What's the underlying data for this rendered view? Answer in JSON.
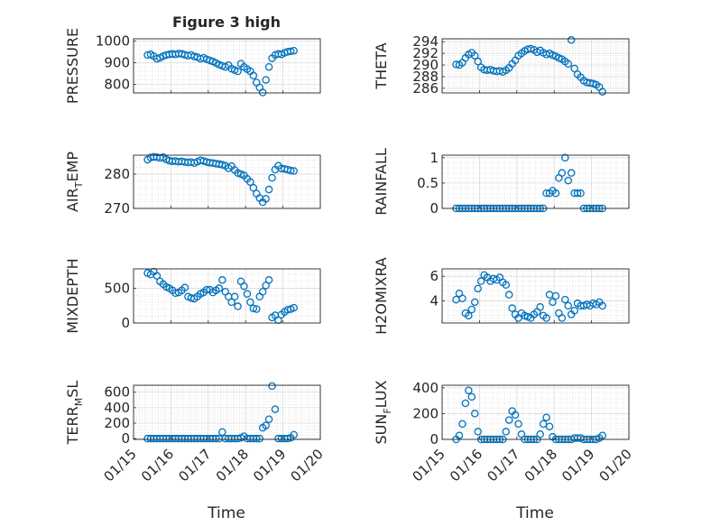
{
  "figure": {
    "title": "Figure 3 high",
    "xlabel": "Time",
    "xticks": [
      "01/15",
      "01/16",
      "01/17",
      "01/18",
      "01/19",
      "01/20"
    ]
  },
  "chart_data": [
    {
      "type": "scatter",
      "ylabel": "PRESSURE",
      "ylim": [
        760,
        1010
      ],
      "yticks": [
        "800",
        "900",
        "1000"
      ],
      "xlim": [
        "01/15",
        "01/20"
      ],
      "grid": true,
      "x": [
        "01/15 09:00",
        "01/15 11:00",
        "01/15 13:00",
        "01/15 15:00",
        "01/15 17:00",
        "01/15 19:00",
        "01/15 21:00",
        "01/15 23:00",
        "01/16 01:00",
        "01/16 03:00",
        "01/16 05:00",
        "01/16 07:00",
        "01/16 09:00",
        "01/16 11:00",
        "01/16 13:00",
        "01/16 15:00",
        "01/16 17:00",
        "01/16 19:00",
        "01/16 21:00",
        "01/16 23:00",
        "01/17 01:00",
        "01/17 03:00",
        "01/17 05:00",
        "01/17 07:00",
        "01/17 09:00",
        "01/17 11:00",
        "01/17 13:00",
        "01/17 15:00",
        "01/17 17:00",
        "01/17 19:00",
        "01/17 21:00",
        "01/17 23:00",
        "01/18 01:00",
        "01/18 03:00",
        "01/18 05:00",
        "01/18 07:00",
        "01/18 09:00",
        "01/18 11:00",
        "01/18 13:00",
        "01/18 15:00",
        "01/18 17:00",
        "01/18 19:00",
        "01/18 21:00",
        "01/18 23:00",
        "01/19 01:00",
        "01/19 03:00",
        "01/19 05:00",
        "01/19 07:00"
      ],
      "y": [
        935,
        938,
        930,
        918,
        922,
        930,
        935,
        938,
        940,
        938,
        942,
        940,
        936,
        932,
        935,
        928,
        925,
        918,
        922,
        915,
        910,
        905,
        898,
        890,
        885,
        880,
        888,
        872,
        865,
        860,
        895,
        880,
        870,
        860,
        840,
        808,
        785,
        762,
        820,
        880,
        920,
        935,
        940,
        938,
        945,
        950,
        952,
        955
      ]
    },
    {
      "type": "scatter",
      "ylabel": "THETA",
      "ylim": [
        285.2,
        294.5
      ],
      "yticks": [
        "286",
        "288",
        "290",
        "292",
        "294"
      ],
      "xlim": [
        "01/15",
        "01/20"
      ],
      "grid": true,
      "x": [
        "01/15 09:00",
        "01/15 11:00",
        "01/15 13:00",
        "01/15 15:00",
        "01/15 17:00",
        "01/15 19:00",
        "01/15 21:00",
        "01/15 23:00",
        "01/16 01:00",
        "01/16 03:00",
        "01/16 05:00",
        "01/16 07:00",
        "01/16 09:00",
        "01/16 11:00",
        "01/16 13:00",
        "01/16 15:00",
        "01/16 17:00",
        "01/16 19:00",
        "01/16 21:00",
        "01/16 23:00",
        "01/17 01:00",
        "01/17 03:00",
        "01/17 05:00",
        "01/17 07:00",
        "01/17 09:00",
        "01/17 11:00",
        "01/17 13:00",
        "01/17 15:00",
        "01/17 17:00",
        "01/17 19:00",
        "01/17 21:00",
        "01/17 23:00",
        "01/18 01:00",
        "01/18 03:00",
        "01/18 05:00",
        "01/18 07:00",
        "01/18 09:00",
        "01/18 11:00",
        "01/18 13:00",
        "01/18 15:00",
        "01/18 17:00",
        "01/18 19:00",
        "01/18 21:00",
        "01/18 23:00",
        "01/19 01:00",
        "01/19 03:00",
        "01/19 05:00",
        "01/19 07:00"
      ],
      "y": [
        290.1,
        290.0,
        290.4,
        291.2,
        291.8,
        292.1,
        291.6,
        290.6,
        289.6,
        289.2,
        289.1,
        289.2,
        289.0,
        288.9,
        289.0,
        288.8,
        289.1,
        289.5,
        290.2,
        290.8,
        291.6,
        292.0,
        292.4,
        292.7,
        292.8,
        292.6,
        292.2,
        292.5,
        292.1,
        291.8,
        292.0,
        291.7,
        291.5,
        291.2,
        291.0,
        290.6,
        290.2,
        294.3,
        289.4,
        288.4,
        287.9,
        287.3,
        287.0,
        286.9,
        286.8,
        286.6,
        286.2,
        285.4
      ]
    },
    {
      "type": "scatter",
      "ylabel": "AIR_TEMP",
      "ylim": [
        270,
        285.5
      ],
      "yticks": [
        "270",
        "280"
      ],
      "xlim": [
        "01/15",
        "01/20"
      ],
      "grid": true,
      "x": [
        "01/15 09:00",
        "01/15 11:00",
        "01/15 13:00",
        "01/15 15:00",
        "01/15 17:00",
        "01/15 19:00",
        "01/15 21:00",
        "01/15 23:00",
        "01/16 01:00",
        "01/16 03:00",
        "01/16 05:00",
        "01/16 07:00",
        "01/16 09:00",
        "01/16 11:00",
        "01/16 13:00",
        "01/16 15:00",
        "01/16 17:00",
        "01/16 19:00",
        "01/16 21:00",
        "01/16 23:00",
        "01/17 01:00",
        "01/17 03:00",
        "01/17 05:00",
        "01/17 07:00",
        "01/17 09:00",
        "01/17 11:00",
        "01/17 13:00",
        "01/17 15:00",
        "01/17 17:00",
        "01/17 19:00",
        "01/17 21:00",
        "01/17 23:00",
        "01/18 01:00",
        "01/18 03:00",
        "01/18 05:00",
        "01/18 07:00",
        "01/18 09:00",
        "01/18 11:00",
        "01/18 13:00",
        "01/18 15:00",
        "01/18 17:00",
        "01/18 19:00",
        "01/18 21:00",
        "01/18 23:00",
        "01/19 01:00",
        "01/19 03:00",
        "01/19 05:00",
        "01/19 07:00"
      ],
      "y": [
        284.2,
        284.8,
        285.0,
        284.9,
        284.7,
        284.9,
        284.3,
        283.9,
        283.7,
        283.8,
        283.6,
        283.7,
        283.5,
        283.4,
        283.5,
        283.2,
        283.6,
        284.0,
        283.8,
        283.5,
        283.3,
        283.2,
        283.0,
        282.9,
        282.7,
        282.4,
        281.7,
        282.3,
        281.2,
        280.3,
        280.0,
        279.6,
        278.6,
        277.7,
        276.0,
        274.3,
        273.0,
        271.8,
        272.8,
        275.5,
        278.9,
        281.3,
        282.4,
        281.6,
        281.5,
        281.3,
        281.0,
        280.9
      ]
    },
    {
      "type": "scatter",
      "ylabel": "RAINFALL",
      "ylim": [
        0,
        1.05
      ],
      "yticks": [
        "0",
        "0.5",
        "1"
      ],
      "xlim": [
        "01/15",
        "01/20"
      ],
      "grid": true,
      "x": [
        "01/15 09:00",
        "01/15 11:00",
        "01/15 13:00",
        "01/15 15:00",
        "01/15 17:00",
        "01/15 19:00",
        "01/15 21:00",
        "01/15 23:00",
        "01/16 01:00",
        "01/16 03:00",
        "01/16 05:00",
        "01/16 07:00",
        "01/16 09:00",
        "01/16 11:00",
        "01/16 13:00",
        "01/16 15:00",
        "01/16 17:00",
        "01/16 19:00",
        "01/16 21:00",
        "01/16 23:00",
        "01/17 01:00",
        "01/17 03:00",
        "01/17 05:00",
        "01/17 07:00",
        "01/17 09:00",
        "01/17 11:00",
        "01/17 13:00",
        "01/17 15:00",
        "01/17 17:00",
        "01/17 19:00",
        "01/17 21:00",
        "01/17 23:00",
        "01/18 01:00",
        "01/18 03:00",
        "01/18 05:00",
        "01/18 07:00",
        "01/18 09:00",
        "01/18 11:00",
        "01/18 13:00",
        "01/18 15:00",
        "01/18 17:00",
        "01/18 19:00",
        "01/18 21:00",
        "01/18 23:00",
        "01/19 01:00",
        "01/19 03:00",
        "01/19 05:00",
        "01/19 07:00"
      ],
      "y": [
        0,
        0,
        0,
        0,
        0,
        0,
        0,
        0,
        0,
        0,
        0,
        0,
        0,
        0,
        0,
        0,
        0,
        0,
        0,
        0,
        0,
        0,
        0,
        0,
        0,
        0,
        0,
        0,
        0,
        0.3,
        0.3,
        0.35,
        0.3,
        0.6,
        0.7,
        1.0,
        0.55,
        0.7,
        0.3,
        0.3,
        0.3,
        0,
        0,
        0,
        0,
        0,
        0,
        0
      ]
    },
    {
      "type": "scatter",
      "ylabel": "MIXDEPTH",
      "ylim": [
        0,
        780
      ],
      "yticks": [
        "0",
        "500"
      ],
      "xlim": [
        "01/15",
        "01/20"
      ],
      "grid": true,
      "x": [
        "01/15 09:00",
        "01/15 11:00",
        "01/15 13:00",
        "01/15 15:00",
        "01/15 17:00",
        "01/15 19:00",
        "01/15 21:00",
        "01/15 23:00",
        "01/16 01:00",
        "01/16 03:00",
        "01/16 05:00",
        "01/16 07:00",
        "01/16 09:00",
        "01/16 11:00",
        "01/16 13:00",
        "01/16 15:00",
        "01/16 17:00",
        "01/16 19:00",
        "01/16 21:00",
        "01/16 23:00",
        "01/17 01:00",
        "01/17 03:00",
        "01/17 05:00",
        "01/17 07:00",
        "01/17 09:00",
        "01/17 11:00",
        "01/17 13:00",
        "01/17 15:00",
        "01/17 17:00",
        "01/17 19:00",
        "01/17 21:00",
        "01/17 23:00",
        "01/18 01:00",
        "01/18 03:00",
        "01/18 05:00",
        "01/18 07:00",
        "01/18 09:00",
        "01/18 11:00",
        "01/18 13:00",
        "01/18 15:00",
        "01/18 17:00",
        "01/18 19:00",
        "01/18 21:00",
        "01/18 23:00",
        "01/19 01:00",
        "01/19 03:00",
        "01/19 05:00",
        "01/19 07:00"
      ],
      "y": [
        720,
        700,
        740,
        680,
        600,
        560,
        520,
        500,
        470,
        430,
        440,
        470,
        510,
        380,
        360,
        350,
        380,
        420,
        440,
        480,
        480,
        440,
        470,
        500,
        620,
        450,
        380,
        300,
        380,
        240,
        600,
        530,
        420,
        300,
        210,
        200,
        380,
        450,
        540,
        620,
        80,
        110,
        40,
        120,
        160,
        190,
        200,
        220
      ]
    },
    {
      "type": "scatter",
      "ylabel": "H2OMIXRA",
      "ylim": [
        2.2,
        6.6
      ],
      "yticks": [
        "4",
        "6"
      ],
      "xlim": [
        "01/15",
        "01/20"
      ],
      "grid": true,
      "x": [
        "01/15 09:00",
        "01/15 11:00",
        "01/15 13:00",
        "01/15 15:00",
        "01/15 17:00",
        "01/15 19:00",
        "01/15 21:00",
        "01/15 23:00",
        "01/16 01:00",
        "01/16 03:00",
        "01/16 05:00",
        "01/16 07:00",
        "01/16 09:00",
        "01/16 11:00",
        "01/16 13:00",
        "01/16 15:00",
        "01/16 17:00",
        "01/16 19:00",
        "01/16 21:00",
        "01/16 23:00",
        "01/17 01:00",
        "01/17 03:00",
        "01/17 05:00",
        "01/17 07:00",
        "01/17 09:00",
        "01/17 11:00",
        "01/17 13:00",
        "01/17 15:00",
        "01/17 17:00",
        "01/17 19:00",
        "01/17 21:00",
        "01/17 23:00",
        "01/18 01:00",
        "01/18 03:00",
        "01/18 05:00",
        "01/18 07:00",
        "01/18 09:00",
        "01/18 11:00",
        "01/18 13:00",
        "01/18 15:00",
        "01/18 17:00",
        "01/18 19:00",
        "01/18 21:00",
        "01/18 23:00",
        "01/19 01:00",
        "01/19 03:00",
        "01/19 05:00",
        "01/19 07:00"
      ],
      "y": [
        4.1,
        4.6,
        4.2,
        3.0,
        2.8,
        3.3,
        3.9,
        5.0,
        5.6,
        6.1,
        5.9,
        5.6,
        5.8,
        5.7,
        5.9,
        5.5,
        5.3,
        4.5,
        3.4,
        2.9,
        2.6,
        3.0,
        2.8,
        2.7,
        2.6,
        2.9,
        3.1,
        3.5,
        2.8,
        2.6,
        4.5,
        3.9,
        4.4,
        3.0,
        2.6,
        4.1,
        3.6,
        2.9,
        3.2,
        3.8,
        3.6,
        3.6,
        3.7,
        3.6,
        3.8,
        3.7,
        3.9,
        3.6
      ]
    },
    {
      "type": "scatter",
      "ylabel": "TERR_MSL",
      "ylim": [
        -10,
        690
      ],
      "yticks": [
        "0",
        "200",
        "400",
        "600"
      ],
      "xlim": [
        "01/15",
        "01/20"
      ],
      "grid": true,
      "x": [
        "01/15 09:00",
        "01/15 11:00",
        "01/15 13:00",
        "01/15 15:00",
        "01/15 17:00",
        "01/15 19:00",
        "01/15 21:00",
        "01/15 23:00",
        "01/16 01:00",
        "01/16 03:00",
        "01/16 05:00",
        "01/16 07:00",
        "01/16 09:00",
        "01/16 11:00",
        "01/16 13:00",
        "01/16 15:00",
        "01/16 17:00",
        "01/16 19:00",
        "01/16 21:00",
        "01/16 23:00",
        "01/17 01:00",
        "01/17 03:00",
        "01/17 05:00",
        "01/17 07:00",
        "01/17 09:00",
        "01/17 11:00",
        "01/17 13:00",
        "01/17 15:00",
        "01/17 17:00",
        "01/17 19:00",
        "01/17 21:00",
        "01/17 23:00",
        "01/18 01:00",
        "01/18 03:00",
        "01/18 05:00",
        "01/18 07:00",
        "01/18 09:00",
        "01/18 11:00",
        "01/18 13:00",
        "01/18 15:00",
        "01/18 17:00",
        "01/18 19:00",
        "01/18 21:00",
        "01/18 23:00",
        "01/19 01:00",
        "01/19 03:00",
        "01/19 05:00",
        "01/19 07:00"
      ],
      "y": [
        0,
        0,
        0,
        0,
        0,
        0,
        0,
        0,
        0,
        0,
        0,
        0,
        0,
        0,
        0,
        0,
        0,
        0,
        0,
        0,
        0,
        0,
        0,
        0,
        85,
        0,
        0,
        0,
        0,
        0,
        10,
        30,
        0,
        0,
        0,
        0,
        0,
        140,
        170,
        250,
        680,
        380,
        0,
        0,
        0,
        0,
        10,
        50
      ]
    },
    {
      "type": "scatter",
      "ylabel": "SUN_FLUX",
      "ylim": [
        0,
        420
      ],
      "yticks": [
        "0",
        "200",
        "400"
      ],
      "xlim": [
        "01/15",
        "01/20"
      ],
      "grid": true,
      "x": [
        "01/15 09:00",
        "01/15 11:00",
        "01/15 13:00",
        "01/15 15:00",
        "01/15 17:00",
        "01/15 19:00",
        "01/15 21:00",
        "01/15 23:00",
        "01/16 01:00",
        "01/16 03:00",
        "01/16 05:00",
        "01/16 07:00",
        "01/16 09:00",
        "01/16 11:00",
        "01/16 13:00",
        "01/16 15:00",
        "01/16 17:00",
        "01/16 19:00",
        "01/16 21:00",
        "01/16 23:00",
        "01/17 01:00",
        "01/17 03:00",
        "01/17 05:00",
        "01/17 07:00",
        "01/17 09:00",
        "01/17 11:00",
        "01/17 13:00",
        "01/17 15:00",
        "01/17 17:00",
        "01/17 19:00",
        "01/17 21:00",
        "01/17 23:00",
        "01/18 01:00",
        "01/18 03:00",
        "01/18 05:00",
        "01/18 07:00",
        "01/18 09:00",
        "01/18 11:00",
        "01/18 13:00",
        "01/18 15:00",
        "01/18 17:00",
        "01/18 19:00",
        "01/18 21:00",
        "01/18 23:00",
        "01/19 01:00",
        "01/19 03:00",
        "01/19 05:00",
        "01/19 07:00"
      ],
      "y": [
        0,
        30,
        120,
        280,
        380,
        330,
        200,
        60,
        0,
        0,
        0,
        0,
        0,
        0,
        0,
        0,
        60,
        150,
        220,
        190,
        120,
        40,
        0,
        0,
        0,
        0,
        0,
        40,
        120,
        170,
        100,
        20,
        0,
        0,
        0,
        0,
        0,
        0,
        10,
        10,
        10,
        0,
        0,
        0,
        0,
        0,
        10,
        30
      ]
    }
  ]
}
